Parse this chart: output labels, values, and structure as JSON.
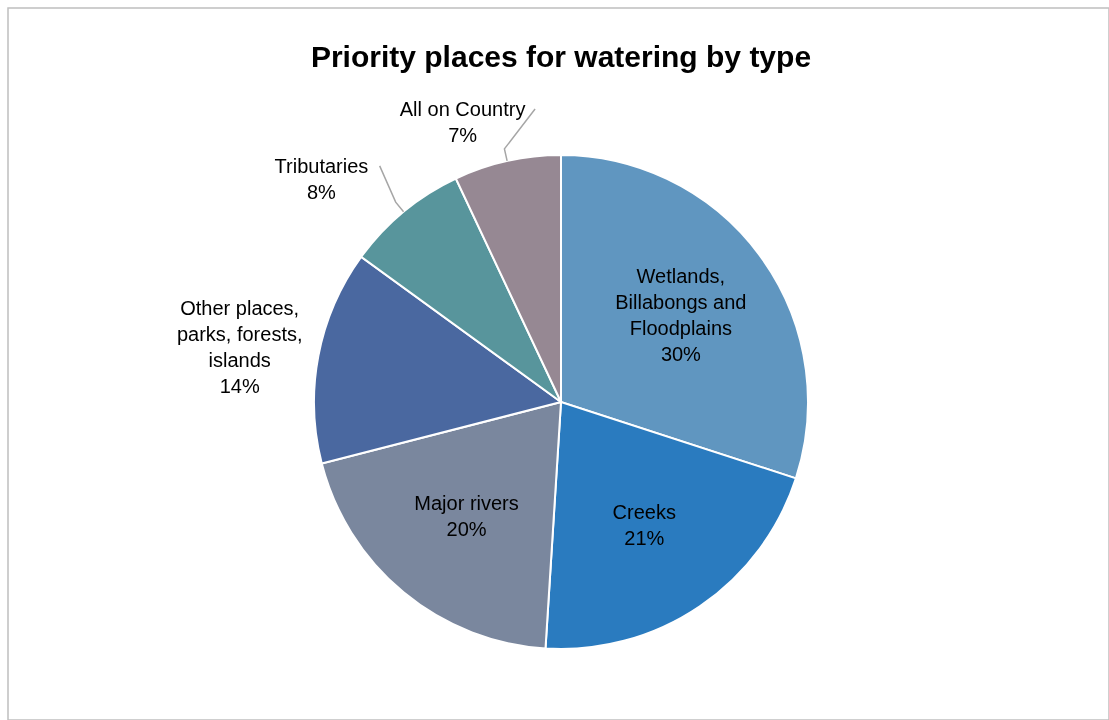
{
  "chart_data": {
    "type": "pie",
    "title": "Priority places for watering by type",
    "categories": [
      "Wetlands, Billabongs and Floodplains",
      "Creeks",
      "Major rivers",
      "Other places, parks, forests, islands",
      "Tributaries",
      "All on Country"
    ],
    "values": [
      30,
      21,
      20,
      14,
      8,
      7
    ],
    "colors": [
      "#6096c0",
      "#2a7bbf",
      "#7a879e",
      "#4a68a0",
      "#58959c",
      "#968893"
    ],
    "value_labels": [
      "30%",
      "21%",
      "20%",
      "14%",
      "8%",
      "7%"
    ]
  }
}
